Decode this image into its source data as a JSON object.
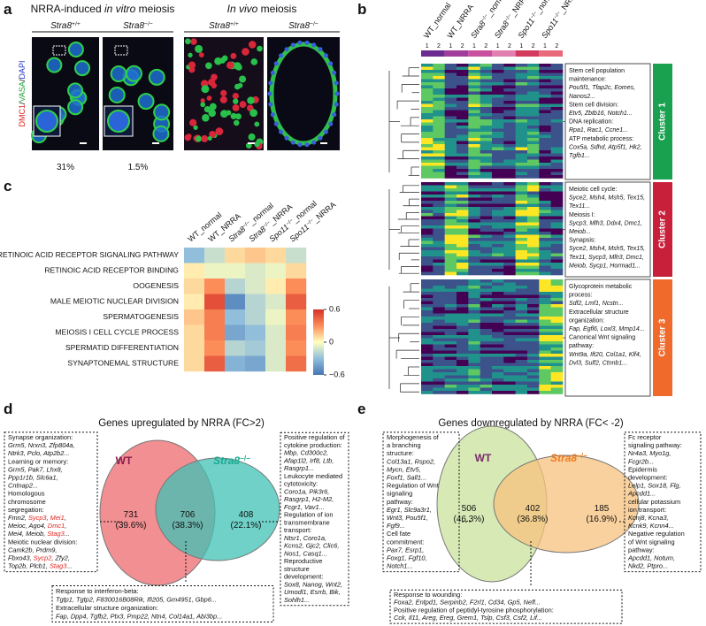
{
  "panels": {
    "a": {
      "label": "a",
      "title_invitro": [
        "NRRA-induced ",
        "in vitro",
        " meiosis"
      ],
      "title_invivo": [
        "In vivo",
        " meiosis"
      ],
      "genotypes": [
        {
          "gene": "Stra8",
          "sup": "+/+"
        },
        {
          "gene": "Stra8",
          "sup": "−/−"
        },
        {
          "gene": "Stra8",
          "sup": "+/+"
        },
        {
          "gene": "Stra8",
          "sup": "−/−"
        }
      ],
      "stain": [
        "DMC1",
        "/",
        "VASA",
        "/",
        "DAPI"
      ],
      "stain_colors": [
        "#e0201b",
        "#111111",
        "#1fa03a",
        "#111111",
        "#2336c8"
      ],
      "percentages": [
        "31%",
        "1.5%"
      ]
    },
    "b": {
      "label": "b",
      "columns": [
        {
          "text": "WT_normal"
        },
        {
          "text": "WT_NRRA"
        },
        {
          "gene": "Stra8",
          "sup": "−/−",
          "suffix": "_normal"
        },
        {
          "gene": "Stra8",
          "sup": "−/−",
          "suffix": "_NRRA"
        },
        {
          "gene": "Spo11",
          "sup": "−/−",
          "suffix": "_normal"
        },
        {
          "gene": "Spo11",
          "sup": "−/−",
          "suffix": "_NRRA"
        }
      ],
      "column_colors": [
        "#6a2c8e",
        "#a23c9b",
        "#c9509f",
        "#e07fb0",
        "#d23a5e",
        "#e8697a"
      ],
      "replicates": [
        "1",
        "2"
      ],
      "clusters": [
        {
          "name": "Cluster 1",
          "color": "#1aa14f",
          "items": [
            {
              "heading": [
                "Stem cell population",
                "maintenance:"
              ],
              "genes": [
                "Pou5f1, Tfap2c, Eomes,",
                "Nanos2..."
              ]
            },
            {
              "heading": [
                "Stem cell division:"
              ],
              "genes": [
                "Etv5, Zbtb16, Notch1..."
              ]
            },
            {
              "heading": [
                "DNA replication:"
              ],
              "genes": [
                "Rpa1, Rac1, Ccne1..."
              ]
            },
            {
              "heading": [
                "ATP metabolic process:"
              ],
              "genes": [
                "Cox5a, Sdhd, Atp5f1, Hk2,",
                "Tgfb1..."
              ]
            }
          ]
        },
        {
          "name": "Cluster 2",
          "color": "#c8203a",
          "items": [
            {
              "heading": [
                "Meiotic cell cycle:"
              ],
              "genes": [
                "Syce2, Msh4, Msh5, Tex15,",
                "Tex11..."
              ]
            },
            {
              "heading": [
                "Meiosis I:"
              ],
              "genes": [
                "Sycp3, Mlh3, Ddx4, Dmc1,",
                "Meiob..."
              ]
            },
            {
              "heading": [
                "Synapsis:"
              ],
              "genes": [
                "Syce2, Msh4, Msh5, Tex15,",
                "Tex11, Sycp3, Mlh3, Dmc1,",
                "Meiob, Sycp1, Hormad1..."
              ]
            }
          ]
        },
        {
          "name": "Cluster 3",
          "color": "#ef6a2b",
          "items": [
            {
              "heading": [
                "Glycoprotein metabolic",
                "process:"
              ],
              "genes": [
                "Sdf2, Lmf1, Ncstn..."
              ]
            },
            {
              "heading": [
                "Extracellular structure",
                "organization:"
              ],
              "genes": [
                "Fap, Egfl6, Loxl3, Mmp14..."
              ]
            },
            {
              "heading": [
                "Canonical Wnt signaling",
                "pathway:"
              ],
              "genes": [
                "Wnt9a, Ift20, Col1a1, Klf4,",
                "Dvl3, Sulf2, Ctnnb1..."
              ]
            }
          ]
        }
      ]
    },
    "c": {
      "label": "c",
      "columns": [
        {
          "text": "WT_normal"
        },
        {
          "text": "WT_NRRA"
        },
        {
          "gene": "Stra8",
          "sup": "−/−",
          "suffix": "_normal"
        },
        {
          "gene": "Stra8",
          "sup": "−/−",
          "suffix": "_NRRA"
        },
        {
          "gene": "Spo11",
          "sup": "−/−",
          "suffix": "_normal"
        },
        {
          "gene": "Spo11",
          "sup": "−/−",
          "suffix": "_NRRA"
        }
      ],
      "rows": [
        "RETINOIC ACID RECEPTOR SIGNALING PATHWAY",
        "RETINOIC ACID RECEPTOR BINDING",
        "OOGENESIS",
        "MALE MEIOTIC NUCLEAR DIVISION",
        "SPERMATOGENESIS",
        "MEIOSIS I CELL CYCLE PROCESS",
        "SPERMATID DIFFERENTIATION",
        "SYNAPTONEMAL STRUCTURE"
      ],
      "values": [
        [
          -0.3,
          -0.15,
          0.1,
          0.15,
          0.1,
          -0.15
        ],
        [
          0.05,
          -0.05,
          -0.05,
          -0.1,
          -0.05,
          0.1
        ],
        [
          0.1,
          0.3,
          -0.2,
          -0.1,
          0.05,
          0.3
        ],
        [
          0.05,
          0.5,
          -0.5,
          -0.2,
          -0.1,
          0.45
        ],
        [
          0.15,
          0.35,
          -0.3,
          -0.2,
          -0.05,
          0.3
        ],
        [
          0.1,
          0.35,
          -0.4,
          -0.3,
          -0.1,
          0.35
        ],
        [
          0.1,
          0.3,
          -0.2,
          -0.25,
          -0.1,
          0.3
        ],
        [
          0.1,
          0.45,
          -0.35,
          -0.4,
          -0.1,
          0.4
        ]
      ],
      "clim": [
        -0.6,
        0.6
      ],
      "colorscale": [
        "#4575b4",
        "#91bfdb",
        "#ffffbf",
        "#fc8d59",
        "#d73027"
      ],
      "cticks": [
        0.6,
        0,
        {
          "value": -0.6,
          "label": "−0.6"
        }
      ]
    },
    "d": {
      "label": "d",
      "title": "Genes upregulated by NRRA (FC>2)",
      "sets": [
        {
          "label": {
            "text": "WT"
          },
          "color": "#8c1d4e",
          "fill": "#ee6a6e"
        },
        {
          "label": {
            "gene": "Stra8",
            "sup": "−/−"
          },
          "color": "#19a88e",
          "fill": "#3fc2b4"
        }
      ],
      "regions": [
        {
          "count": 731,
          "percent": "(39.6%)"
        },
        {
          "count": 706,
          "percent": "(38.3%)"
        },
        {
          "count": 408,
          "percent": "(22.1%)"
        }
      ],
      "left_box": {
        "highlight": [
          "Sycp3",
          "Mei1",
          "Dmc1",
          "Stag3",
          "Sycp2"
        ],
        "items": [
          {
            "heading": [
              "Synapse organization:"
            ],
            "genes": [
              "Grm5, Nrxn3, Zfp804a,",
              "Ntrk3, Pclo, Atp2b2..."
            ]
          },
          {
            "heading": [
              "Learning or memory:"
            ],
            "genes": [
              "Grm5, Pak7, Lhx8,",
              "Ppp1r1b, Slc6a1,",
              "Cntnap2..."
            ]
          },
          {
            "heading": [
              "Homologous",
              "chromosome",
              "segregation:"
            ],
            "genes": [
              "Fmn2, Sycp3, Mei1,",
              "Meioc, Ago4, Dmc1,",
              "Mei4, Meiob, Stag3..."
            ]
          },
          {
            "heading": [
              "Meiotic nuclear division:"
            ],
            "genes": [
              "Camk2b, Prdm9,",
              "Fbxo43, Sycp2, Zfy2,",
              "Top2b, Plcb1, Stag3..."
            ]
          }
        ]
      },
      "right_box": {
        "items": [
          {
            "heading": [
              "Positive regulation of",
              "cytokine production:"
            ],
            "genes": [
              "Mbp, Cd300c2,",
              "Afap1l2, Irf8, Ltb,",
              "Rasgrp1..."
            ]
          },
          {
            "heading": [
              "Leukocyte mediated",
              "cytotoxicity:"
            ],
            "genes": [
              "Coro1a, Pik3r6,",
              "Rasgrp1, H2-M2,",
              "Fcgr1, Vav1..."
            ]
          },
          {
            "heading": [
              "Regulation of ion",
              "transmembrane",
              "transport:"
            ],
            "genes": [
              "Ntsr1, Coro1a,",
              "Kcns2, Gjc2, Clic6,",
              "Nos1, Casq1..."
            ]
          },
          {
            "heading": [
              "Reproductive",
              "structure",
              "development:"
            ],
            "genes": [
              "Sox8, Nanog, Wnt2,",
              "Umodl1, Esrrb, Bik,",
              "Sohlh1..."
            ]
          }
        ]
      },
      "bottom_box": {
        "items": [
          {
            "heading": [
              "Response to interferon-beta:"
            ],
            "genes": [
              "Tgtp1, Tgtp2, F830016B08Rik, Ifi205, Gm4951, Gbp6..."
            ]
          },
          {
            "heading": [
              "Extracellular structure organization:"
            ],
            "genes": [
              "Fap, Dpp4, Tgfb2, Ptx3, Pmp22, Ntn4, Col14a1, Abi3bp..."
            ]
          }
        ]
      }
    },
    "e": {
      "label": "e",
      "title": "Genes downregulated by NRRA (FC< -2)",
      "sets": [
        {
          "label": {
            "text": "WT"
          },
          "color": "#7a2a6b",
          "fill": "#c9e39c"
        },
        {
          "label": {
            "gene": "Stra8",
            "sup": "−/−"
          },
          "color": "#f07a1e",
          "fill": "#f7c27d"
        }
      ],
      "regions": [
        {
          "count": 506,
          "percent": "(46.3%)"
        },
        {
          "count": 402,
          "percent": "(36.8%)"
        },
        {
          "count": 185,
          "percent": "(16.9%)"
        }
      ],
      "left_box": {
        "items": [
          {
            "heading": [
              "Morphogenesis of",
              "a branching",
              "structure:"
            ],
            "genes": [
              "Col13a1, Rspo2,",
              "Mycn, Etv5,",
              "Foxf1, Sall1..."
            ]
          },
          {
            "heading": [
              "Regulation of Wnt",
              "signaling",
              "pathway:"
            ],
            "genes": [
              "Egr1, Slc9a3r1,",
              "Wnt3, Pou5f1,",
              "Fgf9..."
            ]
          },
          {
            "heading": [
              "Cell fate",
              "commitment:"
            ],
            "genes": [
              "Pax7, Esrp1,",
              "Foxg1, Fgf10,",
              "Notch1..."
            ]
          }
        ]
      },
      "right_box": {
        "items": [
          {
            "heading": [
              "Fc receptor",
              "signaling pathway:"
            ],
            "genes": [
              "Nr4a3, Myo1g,",
              "Fcgr2b..."
            ]
          },
          {
            "heading": [
              "Epidermis",
              "development:"
            ],
            "genes": [
              "Lelp1, Sox18, Flg,",
              "Apcdd1..."
            ]
          },
          {
            "heading": [
              "cellular potassium",
              "ion transport:"
            ],
            "genes": [
              "Kcnj8, Kcna3,",
              "Kcnk9, Kcnn4..."
            ]
          },
          {
            "heading": [
              "Negative regulation",
              "of Wnt signaling",
              "pathway:"
            ],
            "genes": [
              "Apcdd1, Notum,",
              "Nkd2, Ptpro..."
            ]
          }
        ]
      },
      "bottom_box": {
        "items": [
          {
            "heading": [
              "Response to wounding:"
            ],
            "genes": [
              "Foxa2, Entpd1, Serpinb2, F2rl1, Cd34, Gp5, Nefl..."
            ]
          },
          {
            "heading": [
              "Positive regulation of peptidyl-tyrosine phosphorylation:"
            ],
            "genes": [
              "Cck, Il11, Areg, Ereg, Grem1, Tslp, Csf3, Csf2, Lif..."
            ]
          }
        ]
      }
    }
  },
  "highlight_color": "#e0201b"
}
